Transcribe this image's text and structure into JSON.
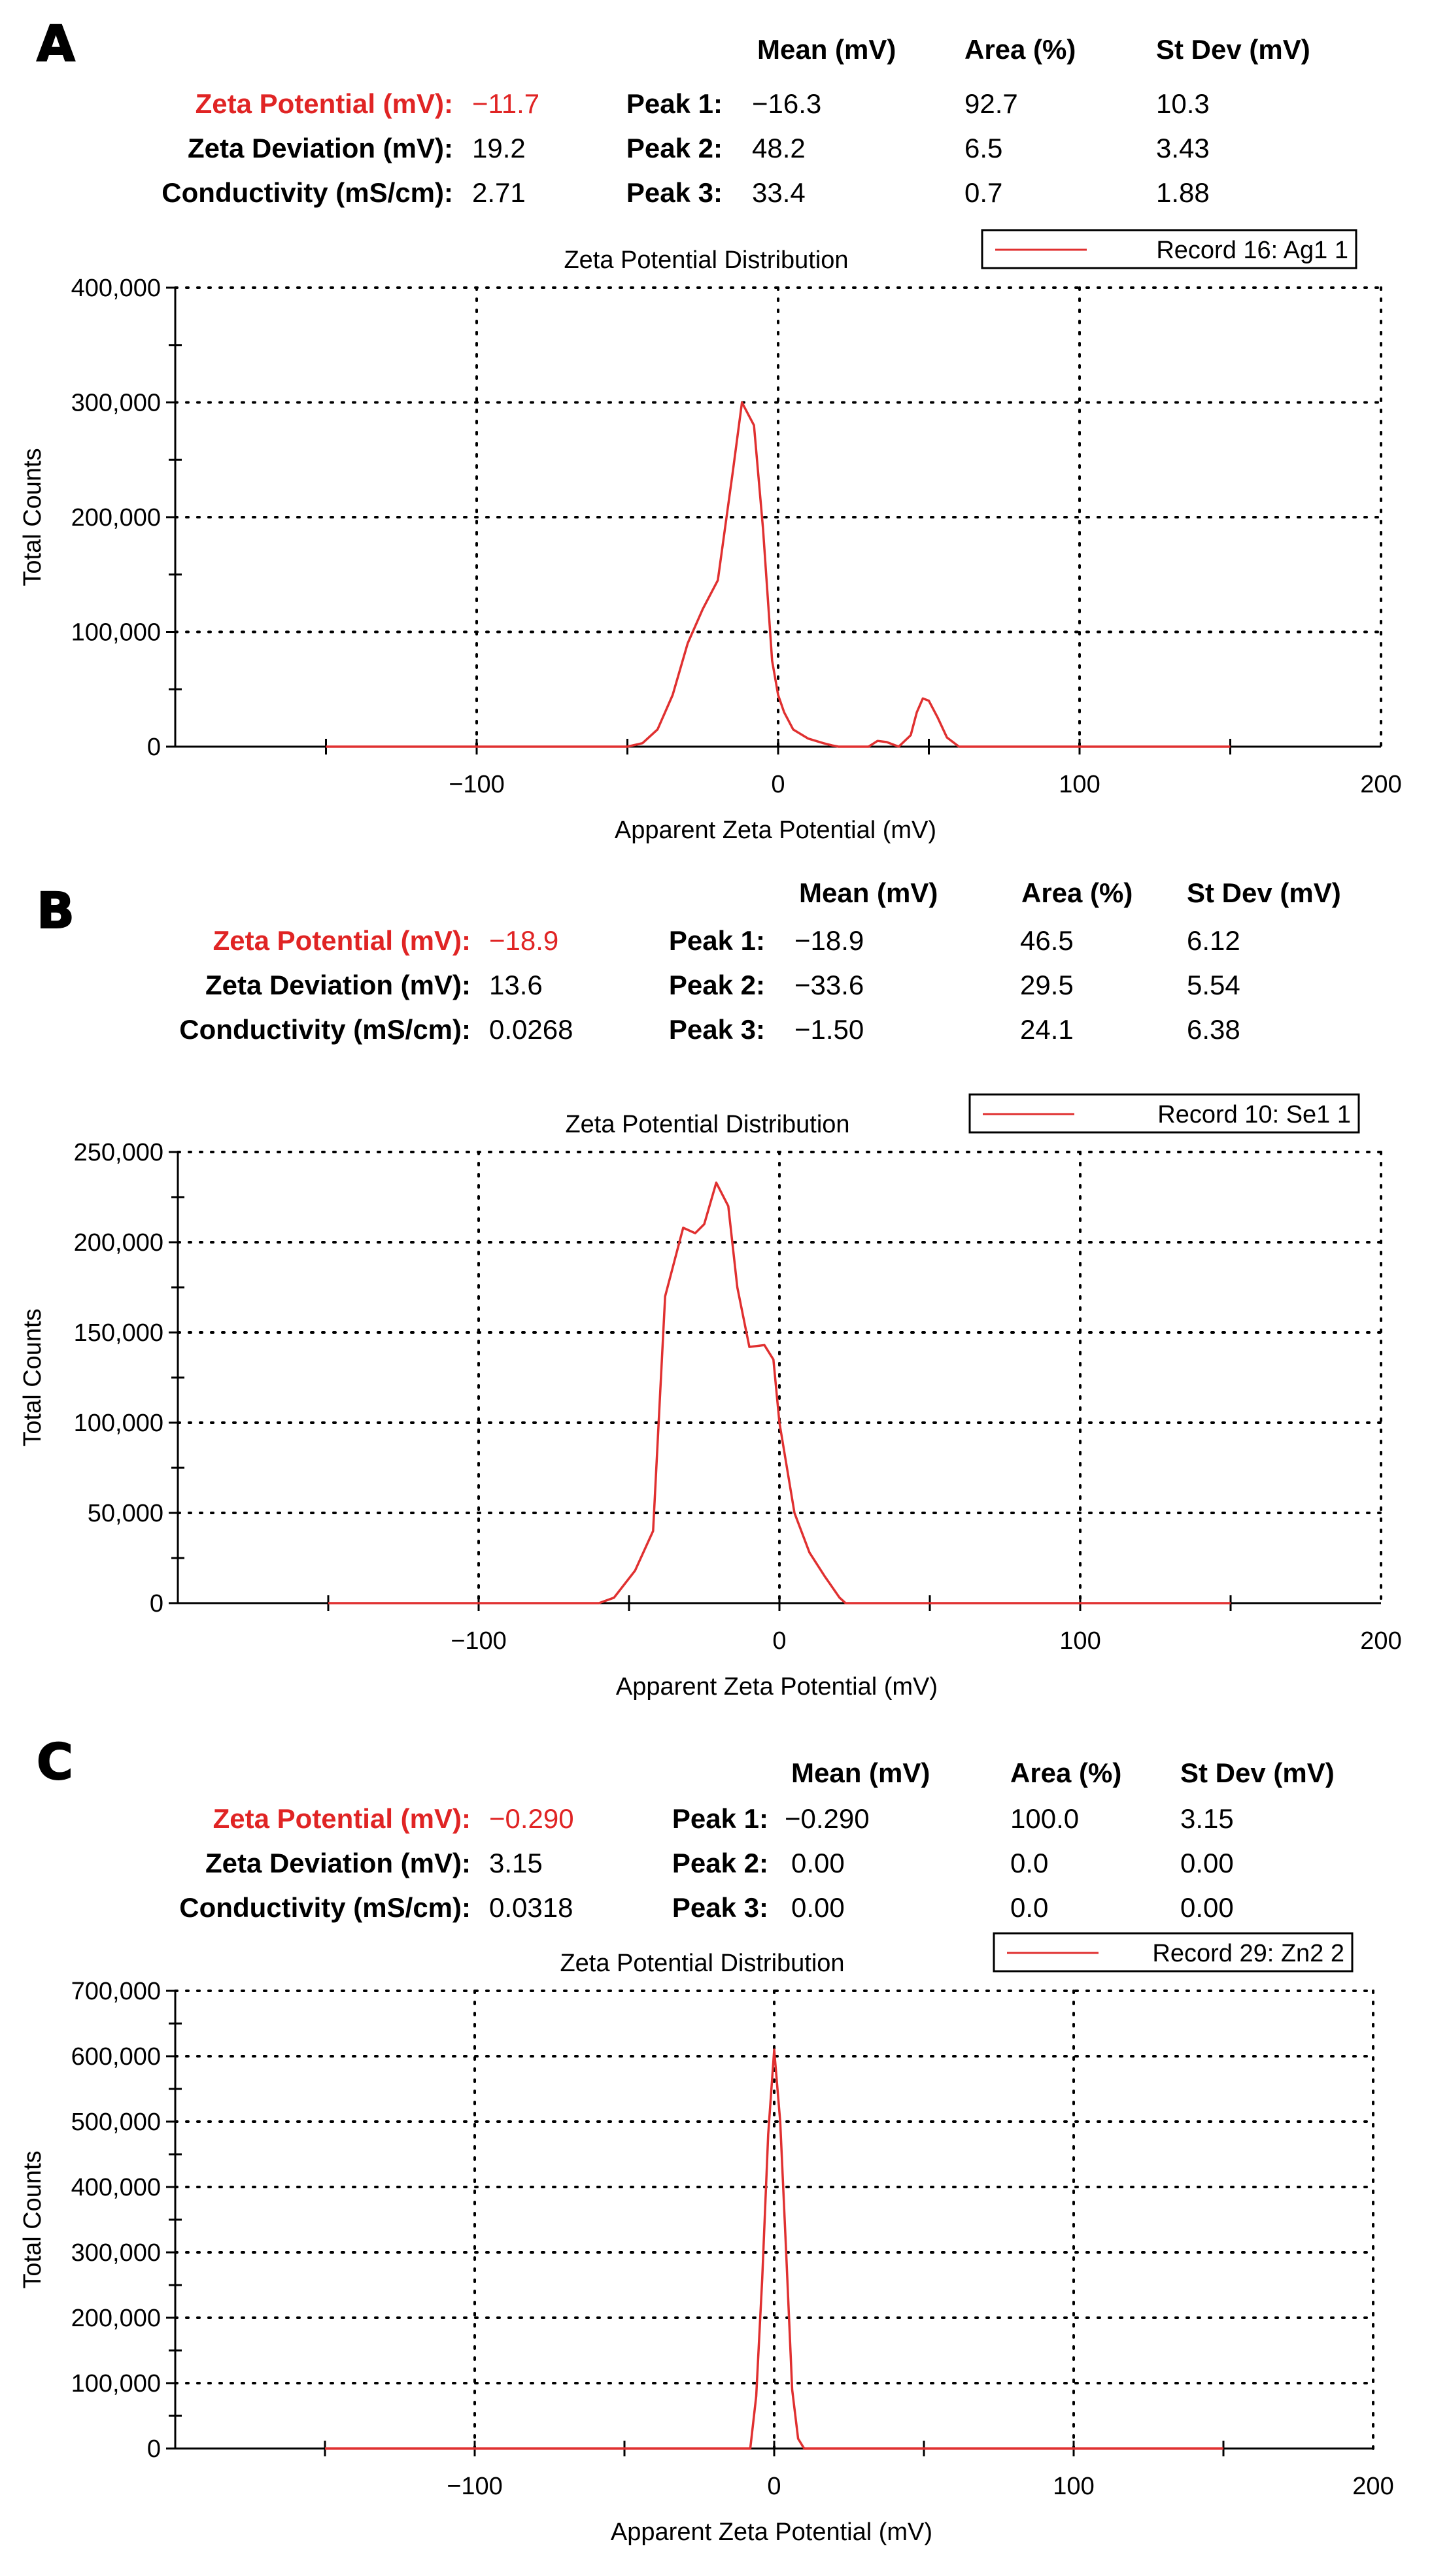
{
  "panels": [
    {
      "letter": "A",
      "zeta_label": "Zeta Potential (mV):",
      "zeta_value": "−11.7",
      "deviation_label": "Zeta Deviation (mV):",
      "deviation_value": "19.2",
      "conductivity_label": "Conductivity (mS/cm):",
      "conductivity_value": "2.71",
      "col_headers": [
        "Mean (mV)",
        "Area (%)",
        "St Dev (mV)"
      ],
      "peaks": [
        {
          "label": "Peak 1:",
          "mean": "−16.3",
          "area": "92.7",
          "stdev": "10.3"
        },
        {
          "label": "Peak 2:",
          "mean": "48.2",
          "area": "6.5",
          "stdev": "3.43"
        },
        {
          "label": "Peak 3:",
          "mean": "33.4",
          "area": "0.7",
          "stdev": "1.88"
        }
      ]
    },
    {
      "letter": "B",
      "zeta_label": "Zeta Potential (mV):",
      "zeta_value": "−18.9",
      "deviation_label": "Zeta Deviation (mV):",
      "deviation_value": "13.6",
      "conductivity_label": "Conductivity (mS/cm):",
      "conductivity_value": "0.0268",
      "col_headers": [
        "Mean (mV)",
        "Area (%)",
        "St Dev (mV)"
      ],
      "peaks": [
        {
          "label": "Peak 1:",
          "mean": "−18.9",
          "area": "46.5",
          "stdev": "6.12"
        },
        {
          "label": "Peak 2:",
          "mean": "−33.6",
          "area": "29.5",
          "stdev": "5.54"
        },
        {
          "label": "Peak 3:",
          "mean": "−1.50",
          "area": "24.1",
          "stdev": "6.38"
        }
      ]
    },
    {
      "letter": "C",
      "zeta_label": "Zeta Potential (mV):",
      "zeta_value": "−0.290",
      "deviation_label": "Zeta Deviation (mV):",
      "deviation_value": "3.15",
      "conductivity_label": "Conductivity (mS/cm):",
      "conductivity_value": "0.0318",
      "col_headers": [
        "Mean (mV)",
        "Area (%)",
        "St Dev (mV)"
      ],
      "peaks": [
        {
          "label": "Peak 1:",
          "mean": "−0.290",
          "area": "100.0",
          "stdev": "3.15"
        },
        {
          "label": "Peak 2:",
          "mean": "0.00",
          "area": "0.0",
          "stdev": "0.00"
        },
        {
          "label": "Peak 3:",
          "mean": "0.00",
          "area": "0.0",
          "stdev": "0.00"
        }
      ]
    }
  ],
  "colors": {
    "series": "#e03030",
    "highlight": "#e02424",
    "axis": "#000000"
  },
  "chart_data": [
    {
      "type": "line",
      "title": "Zeta Potential Distribution",
      "xlabel": "Apparent Zeta Potential (mV)",
      "ylabel": "Total Counts",
      "xlim": [
        -200,
        200
      ],
      "ylim": [
        0,
        400000
      ],
      "xticks": [
        -100,
        0,
        100,
        200
      ],
      "xtick_labels": [
        "−100",
        "0",
        "100",
        "200"
      ],
      "yticks": [
        0,
        100000,
        200000,
        300000,
        400000
      ],
      "ytick_labels": [
        "0",
        "100,000",
        "200,000",
        "300,000",
        "400,000"
      ],
      "grid": true,
      "legend_position": "top-right",
      "series": [
        {
          "name": "Record 16: Ag1 1",
          "x": [
            -150,
            -50,
            -45,
            -40,
            -35,
            -30,
            -25,
            -20,
            -15,
            -12,
            -10,
            -8,
            -5,
            -2,
            0,
            2,
            5,
            10,
            15,
            18,
            20,
            25,
            30,
            33,
            36,
            40,
            44,
            46,
            48,
            50,
            53,
            56,
            60,
            100,
            150
          ],
          "y": [
            0,
            0,
            3000,
            15000,
            45000,
            90000,
            120000,
            145000,
            240000,
            300000,
            290000,
            280000,
            190000,
            75000,
            45000,
            30000,
            15000,
            7000,
            3000,
            1000,
            0,
            0,
            0,
            5000,
            4000,
            0,
            10000,
            30000,
            42000,
            40000,
            25000,
            8000,
            0,
            0,
            0
          ]
        }
      ]
    },
    {
      "type": "line",
      "title": "Zeta Potential Distribution",
      "xlabel": "Apparent Zeta Potential (mV)",
      "ylabel": "Total Counts",
      "xlim": [
        -200,
        200
      ],
      "ylim": [
        0,
        250000
      ],
      "xticks": [
        -100,
        0,
        100,
        200
      ],
      "xtick_labels": [
        "−100",
        "0",
        "100",
        "200"
      ],
      "yticks": [
        0,
        50000,
        100000,
        150000,
        200000,
        250000
      ],
      "ytick_labels": [
        "0",
        "50,000",
        "100,000",
        "150,000",
        "200,000",
        "250,000"
      ],
      "grid": true,
      "legend_position": "top-right",
      "series": [
        {
          "name": "Record 10: Se1 1",
          "x": [
            -150,
            -60,
            -55,
            -48,
            -42,
            -38,
            -32,
            -28,
            -25,
            -21,
            -17,
            -14,
            -10,
            -5,
            -2,
            0,
            5,
            10,
            15,
            20,
            22,
            150
          ],
          "y": [
            0,
            0,
            3000,
            18000,
            40000,
            170000,
            208000,
            205000,
            210000,
            233000,
            220000,
            175000,
            142000,
            143000,
            135000,
            100000,
            50000,
            28000,
            15000,
            3000,
            0,
            0
          ]
        }
      ]
    },
    {
      "type": "line",
      "title": "Zeta Potential Distribution",
      "xlabel": "Apparent Zeta Potential (mV)",
      "ylabel": "Total Counts",
      "xlim": [
        -200,
        200
      ],
      "ylim": [
        0,
        700000
      ],
      "xticks": [
        -100,
        0,
        100,
        200
      ],
      "xtick_labels": [
        "−100",
        "0",
        "100",
        "200"
      ],
      "yticks": [
        0,
        100000,
        200000,
        300000,
        400000,
        500000,
        600000,
        700000
      ],
      "ytick_labels": [
        "0",
        "100,000",
        "200,000",
        "300,000",
        "400,000",
        "500,000",
        "600,000",
        "700,000"
      ],
      "grid": true,
      "legend_position": "top-right",
      "series": [
        {
          "name": "Record 29: Zn2 2",
          "x": [
            -150,
            -8,
            -6,
            -4,
            -2,
            0,
            2,
            4,
            6,
            8,
            10,
            150
          ],
          "y": [
            0,
            0,
            80000,
            260000,
            480000,
            610000,
            500000,
            300000,
            90000,
            15000,
            0,
            0
          ]
        }
      ]
    }
  ]
}
